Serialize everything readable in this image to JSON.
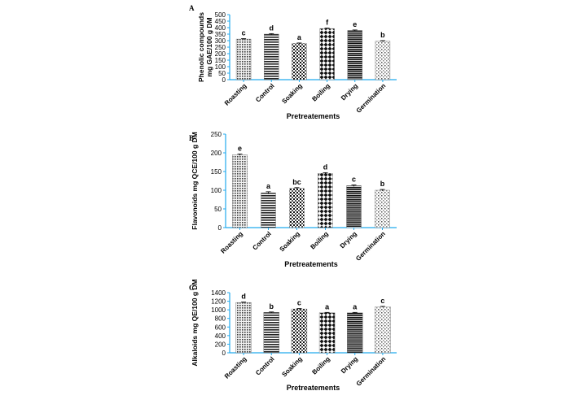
{
  "chart_data": [
    {
      "type": "bar",
      "panel": "A",
      "categories": [
        "Roasting",
        "Control",
        "Soaking",
        "Boiling",
        "Drying",
        "Germination"
      ],
      "values": [
        312,
        350,
        278,
        393,
        378,
        296
      ],
      "errors": [
        4,
        4,
        4,
        4,
        4,
        4
      ],
      "significance": [
        "c",
        "d",
        "a",
        "f",
        "e",
        "b"
      ],
      "patterns": [
        "dots",
        "hlines",
        "dots2",
        "checker",
        "hlines-dark",
        "dots-light"
      ],
      "title": "",
      "xlabel": "Pretreatements",
      "ylabel": [
        "Phenolic compounds",
        "mg GAE/100 g DM"
      ],
      "ylim": [
        0,
        500
      ],
      "yticks": [
        0,
        50,
        100,
        150,
        200,
        250,
        300,
        350,
        400,
        450,
        500
      ],
      "axis_color": "#22aaee",
      "grid": false
    },
    {
      "type": "bar",
      "panel": "B",
      "categories": [
        "Roasting",
        "Control",
        "Soaking",
        "Boiling",
        "Drying",
        "Germination"
      ],
      "values": [
        195,
        93,
        105,
        145,
        112,
        100
      ],
      "errors": [
        2,
        3,
        2,
        2,
        2,
        2
      ],
      "significance": [
        "e",
        "a",
        "bc",
        "d",
        "c",
        "b"
      ],
      "patterns": [
        "dots",
        "hlines",
        "dots2",
        "checker",
        "hlines-dark",
        "dots-light"
      ],
      "title": "",
      "xlabel": "Pretreatements",
      "ylabel": [
        "Flavonoids mg QCE/100 g DM"
      ],
      "ylim": [
        0,
        250
      ],
      "yticks": [
        0,
        50,
        100,
        150,
        200,
        250
      ],
      "axis_color": "#22aaee",
      "grid": false
    },
    {
      "type": "bar",
      "panel": "C",
      "categories": [
        "Roasting",
        "Control",
        "Soaking",
        "Boiling",
        "Drying",
        "Germination"
      ],
      "values": [
        1170,
        940,
        1020,
        930,
        930,
        1070
      ],
      "errors": [
        10,
        10,
        10,
        10,
        10,
        10
      ],
      "significance": [
        "d",
        "b",
        "c",
        "a",
        "a",
        "c"
      ],
      "patterns": [
        "dots",
        "hlines",
        "dots2",
        "checker",
        "hlines-dark",
        "dots-light"
      ],
      "title": "",
      "xlabel": "Pretreatements",
      "ylabel": [
        "Alkaloids mg QE/100 g DM"
      ],
      "ylim": [
        0,
        1400
      ],
      "yticks": [
        0,
        200,
        400,
        600,
        800,
        1000,
        1200,
        1400
      ],
      "axis_color": "#22aaee",
      "grid": false
    }
  ]
}
